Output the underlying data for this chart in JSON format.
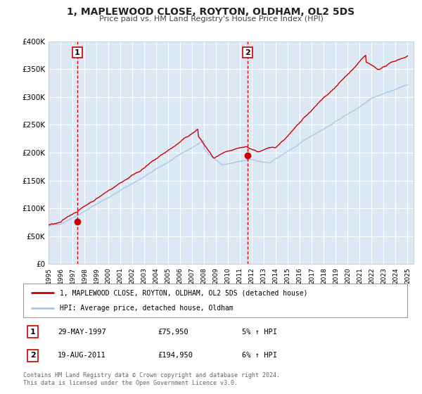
{
  "title": "1, MAPLEWOOD CLOSE, ROYTON, OLDHAM, OL2 5DS",
  "subtitle": "Price paid vs. HM Land Registry's House Price Index (HPI)",
  "ylim": [
    0,
    400000
  ],
  "xlim_start": 1995.0,
  "xlim_end": 2025.5,
  "plot_bg_color": "#dce9f5",
  "grid_color": "#ffffff",
  "sale1_year": 1997.41,
  "sale1_price": 75950,
  "sale2_year": 2011.63,
  "sale2_price": 194950,
  "sale1_date": "29-MAY-1997",
  "sale1_pct": "5% ↑ HPI",
  "sale2_date": "19-AUG-2011",
  "sale2_pct": "6% ↑ HPI",
  "line1_color": "#cc0000",
  "line2_color": "#a8c8e8",
  "marker_color": "#cc0000",
  "vline_color": "#cc0000",
  "legend1_label": "1, MAPLEWOOD CLOSE, ROYTON, OLDHAM, OL2 5DS (detached house)",
  "legend2_label": "HPI: Average price, detached house, Oldham",
  "footer": "Contains HM Land Registry data © Crown copyright and database right 2024.\nThis data is licensed under the Open Government Licence v3.0.",
  "yticks": [
    0,
    50000,
    100000,
    150000,
    200000,
    250000,
    300000,
    350000,
    400000
  ],
  "ytick_labels": [
    "£0",
    "£50K",
    "£100K",
    "£150K",
    "£200K",
    "£250K",
    "£300K",
    "£350K",
    "£400K"
  ]
}
